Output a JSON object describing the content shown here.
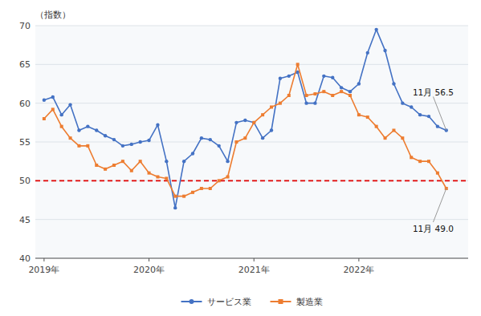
{
  "chart_data": {
    "type": "line",
    "y_label": "（指数）",
    "categories": [
      "2019年",
      null,
      null,
      null,
      null,
      null,
      null,
      null,
      null,
      null,
      null,
      null,
      "2020年",
      null,
      null,
      null,
      null,
      null,
      null,
      null,
      null,
      null,
      null,
      null,
      "2021年",
      null,
      null,
      null,
      null,
      null,
      null,
      null,
      null,
      null,
      null,
      null,
      "2022年",
      null,
      null,
      null,
      null,
      null,
      null,
      null,
      null,
      null,
      null
    ],
    "series": [
      {
        "name": "サービス業",
        "color": "#4472c4",
        "marker": "circle",
        "values": [
          60.4,
          60.8,
          58.5,
          59.8,
          56.5,
          57.0,
          56.5,
          55.8,
          55.3,
          54.5,
          54.7,
          55.0,
          55.2,
          57.2,
          52.5,
          46.5,
          52.5,
          53.5,
          55.5,
          55.3,
          54.5,
          52.5,
          57.5,
          57.8,
          57.5,
          55.5,
          56.5,
          63.2,
          63.5,
          64.0,
          60.0,
          60.0,
          63.5,
          63.3,
          62.0,
          61.5,
          62.5,
          66.5,
          69.5,
          66.8,
          62.5,
          60.0,
          59.5,
          58.5,
          58.3,
          57.0,
          56.5
        ]
      },
      {
        "name": "製造業",
        "color": "#ed7d31",
        "marker": "square",
        "values": [
          58.0,
          59.2,
          57.0,
          55.5,
          54.5,
          54.5,
          52.0,
          51.5,
          52.0,
          52.5,
          51.3,
          52.5,
          51.0,
          50.5,
          50.3,
          48.0,
          48.0,
          48.5,
          49.0,
          49.0,
          50.0,
          50.5,
          55.0,
          55.5,
          57.5,
          58.5,
          59.5,
          60.0,
          61.0,
          65.0,
          61.0,
          61.2,
          61.5,
          61.0,
          61.5,
          61.0,
          58.5,
          58.2,
          57.0,
          55.5,
          56.5,
          55.5,
          53.0,
          52.5,
          52.5,
          51.0,
          49.0
        ]
      }
    ],
    "annotations": [
      "11月 56.5",
      "11月 49.0"
    ],
    "reference_line": {
      "value": 50,
      "color": "#e00000",
      "line_style": "dashed"
    },
    "ylim": [
      40,
      70
    ],
    "yticks": [
      40,
      45,
      50,
      55,
      60,
      65,
      70
    ],
    "grid": true,
    "legend": "bottom"
  }
}
